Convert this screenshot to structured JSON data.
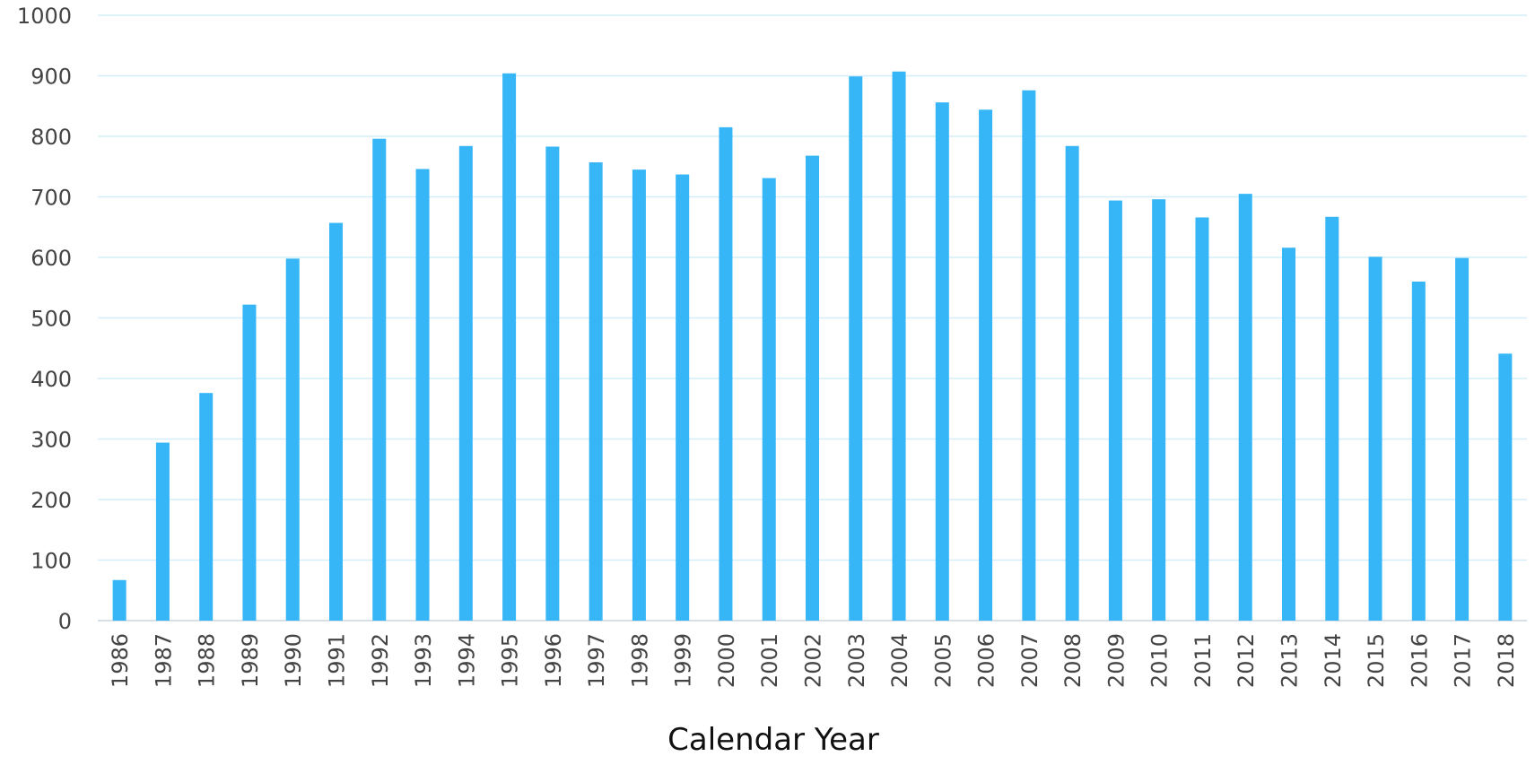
{
  "chart_data": {
    "type": "bar",
    "x_label": "Calendar Year",
    "categories": [
      "1986",
      "1987",
      "1988",
      "1989",
      "1990",
      "1991",
      "1992",
      "1993",
      "1994",
      "1995",
      "1996",
      "1997",
      "1998",
      "1999",
      "2000",
      "2001",
      "2002",
      "2003",
      "2004",
      "2005",
      "2006",
      "2007",
      "2008",
      "2009",
      "2010",
      "2011",
      "2012",
      "2013",
      "2014",
      "2015",
      "2016",
      "2017",
      "2018"
    ],
    "values": [
      67,
      294,
      376,
      522,
      598,
      657,
      796,
      746,
      784,
      904,
      783,
      757,
      745,
      737,
      815,
      731,
      768,
      899,
      907,
      856,
      844,
      876,
      784,
      694,
      696,
      666,
      705,
      616,
      667,
      601,
      560,
      599,
      441
    ],
    "color": "#36b6f6",
    "ylim": [
      0,
      1000
    ],
    "yticks": [
      0,
      100,
      200,
      300,
      400,
      500,
      600,
      700,
      800,
      900,
      1000
    ],
    "grid": true
  }
}
